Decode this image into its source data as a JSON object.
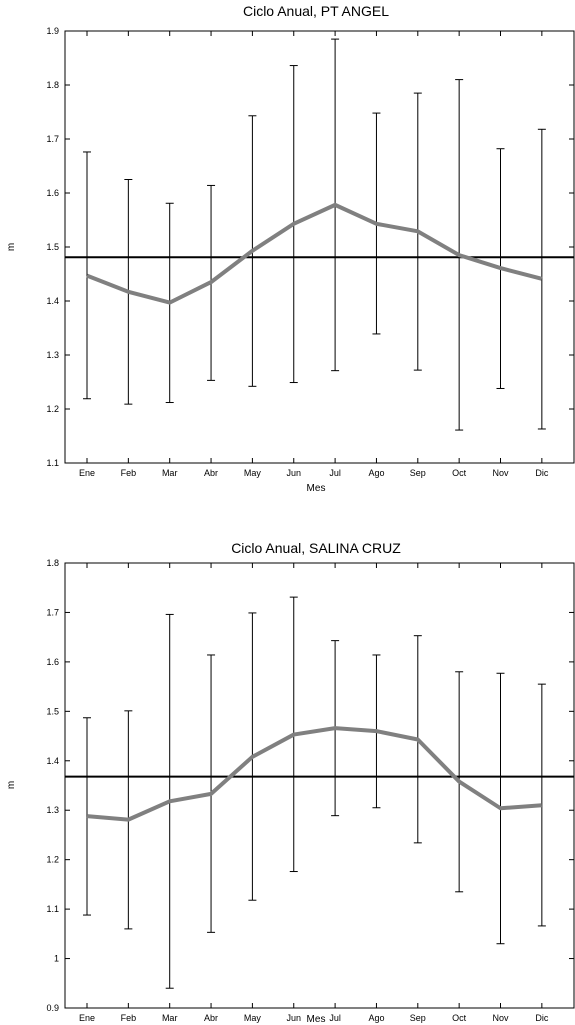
{
  "chart_data": [
    {
      "type": "line",
      "title": "Ciclo Anual, PT ANGEL",
      "xlabel": "Mes",
      "ylabel": "m",
      "categories": [
        "Ene",
        "Feb",
        "Mar",
        "Abr",
        "May",
        "Jun",
        "Jul",
        "Ago",
        "Sep",
        "Oct",
        "Nov",
        "Dic"
      ],
      "ylim": [
        1.1,
        1.9
      ],
      "yticks": [
        "1.1",
        "1.2",
        "1.3",
        "1.4",
        "1.5",
        "1.6",
        "1.7",
        "1.8",
        "1.9"
      ],
      "mean_line": 1.481,
      "series": [
        {
          "values": [
            1.447,
            1.417,
            1.397,
            1.435,
            1.493,
            1.543,
            1.578,
            1.543,
            1.529,
            1.485,
            1.461,
            1.441
          ],
          "lower": [
            1.219,
            1.209,
            1.212,
            1.253,
            1.242,
            1.249,
            1.271,
            1.339,
            1.272,
            1.161,
            1.238,
            1.163
          ],
          "upper": [
            1.676,
            1.625,
            1.581,
            1.614,
            1.743,
            1.836,
            1.885,
            1.748,
            1.785,
            1.81,
            1.682,
            1.718
          ]
        }
      ],
      "colors": {
        "series": "#808080",
        "mean": "#000000",
        "errorbar": "#000000"
      },
      "grid": false
    },
    {
      "type": "line",
      "title": "Ciclo Anual, SALINA CRUZ",
      "xlabel": "Mes",
      "ylabel": "m",
      "categories": [
        "Ene",
        "Feb",
        "Mar",
        "Abr",
        "May",
        "Jun",
        "Jul",
        "Ago",
        "Sep",
        "Oct",
        "Nov",
        "Dic"
      ],
      "ylim": [
        0.9,
        1.8
      ],
      "yticks": [
        "0.9",
        "1",
        "1.1",
        "1.2",
        "1.3",
        "1.4",
        "1.5",
        "1.6",
        "1.7",
        "1.8"
      ],
      "mean_line": 1.368,
      "series": [
        {
          "values": [
            1.288,
            1.281,
            1.318,
            1.333,
            1.408,
            1.453,
            1.466,
            1.46,
            1.443,
            1.358,
            1.304,
            1.31
          ],
          "lower": [
            1.088,
            1.06,
            0.94,
            1.053,
            1.118,
            1.176,
            1.289,
            1.305,
            1.234,
            1.135,
            1.03,
            1.066
          ],
          "upper": [
            1.487,
            1.501,
            1.696,
            1.614,
            1.699,
            1.731,
            1.643,
            1.614,
            1.653,
            1.58,
            1.577,
            1.555
          ]
        }
      ],
      "colors": {
        "series": "#808080",
        "mean": "#000000",
        "errorbar": "#000000"
      },
      "grid": false
    }
  ]
}
